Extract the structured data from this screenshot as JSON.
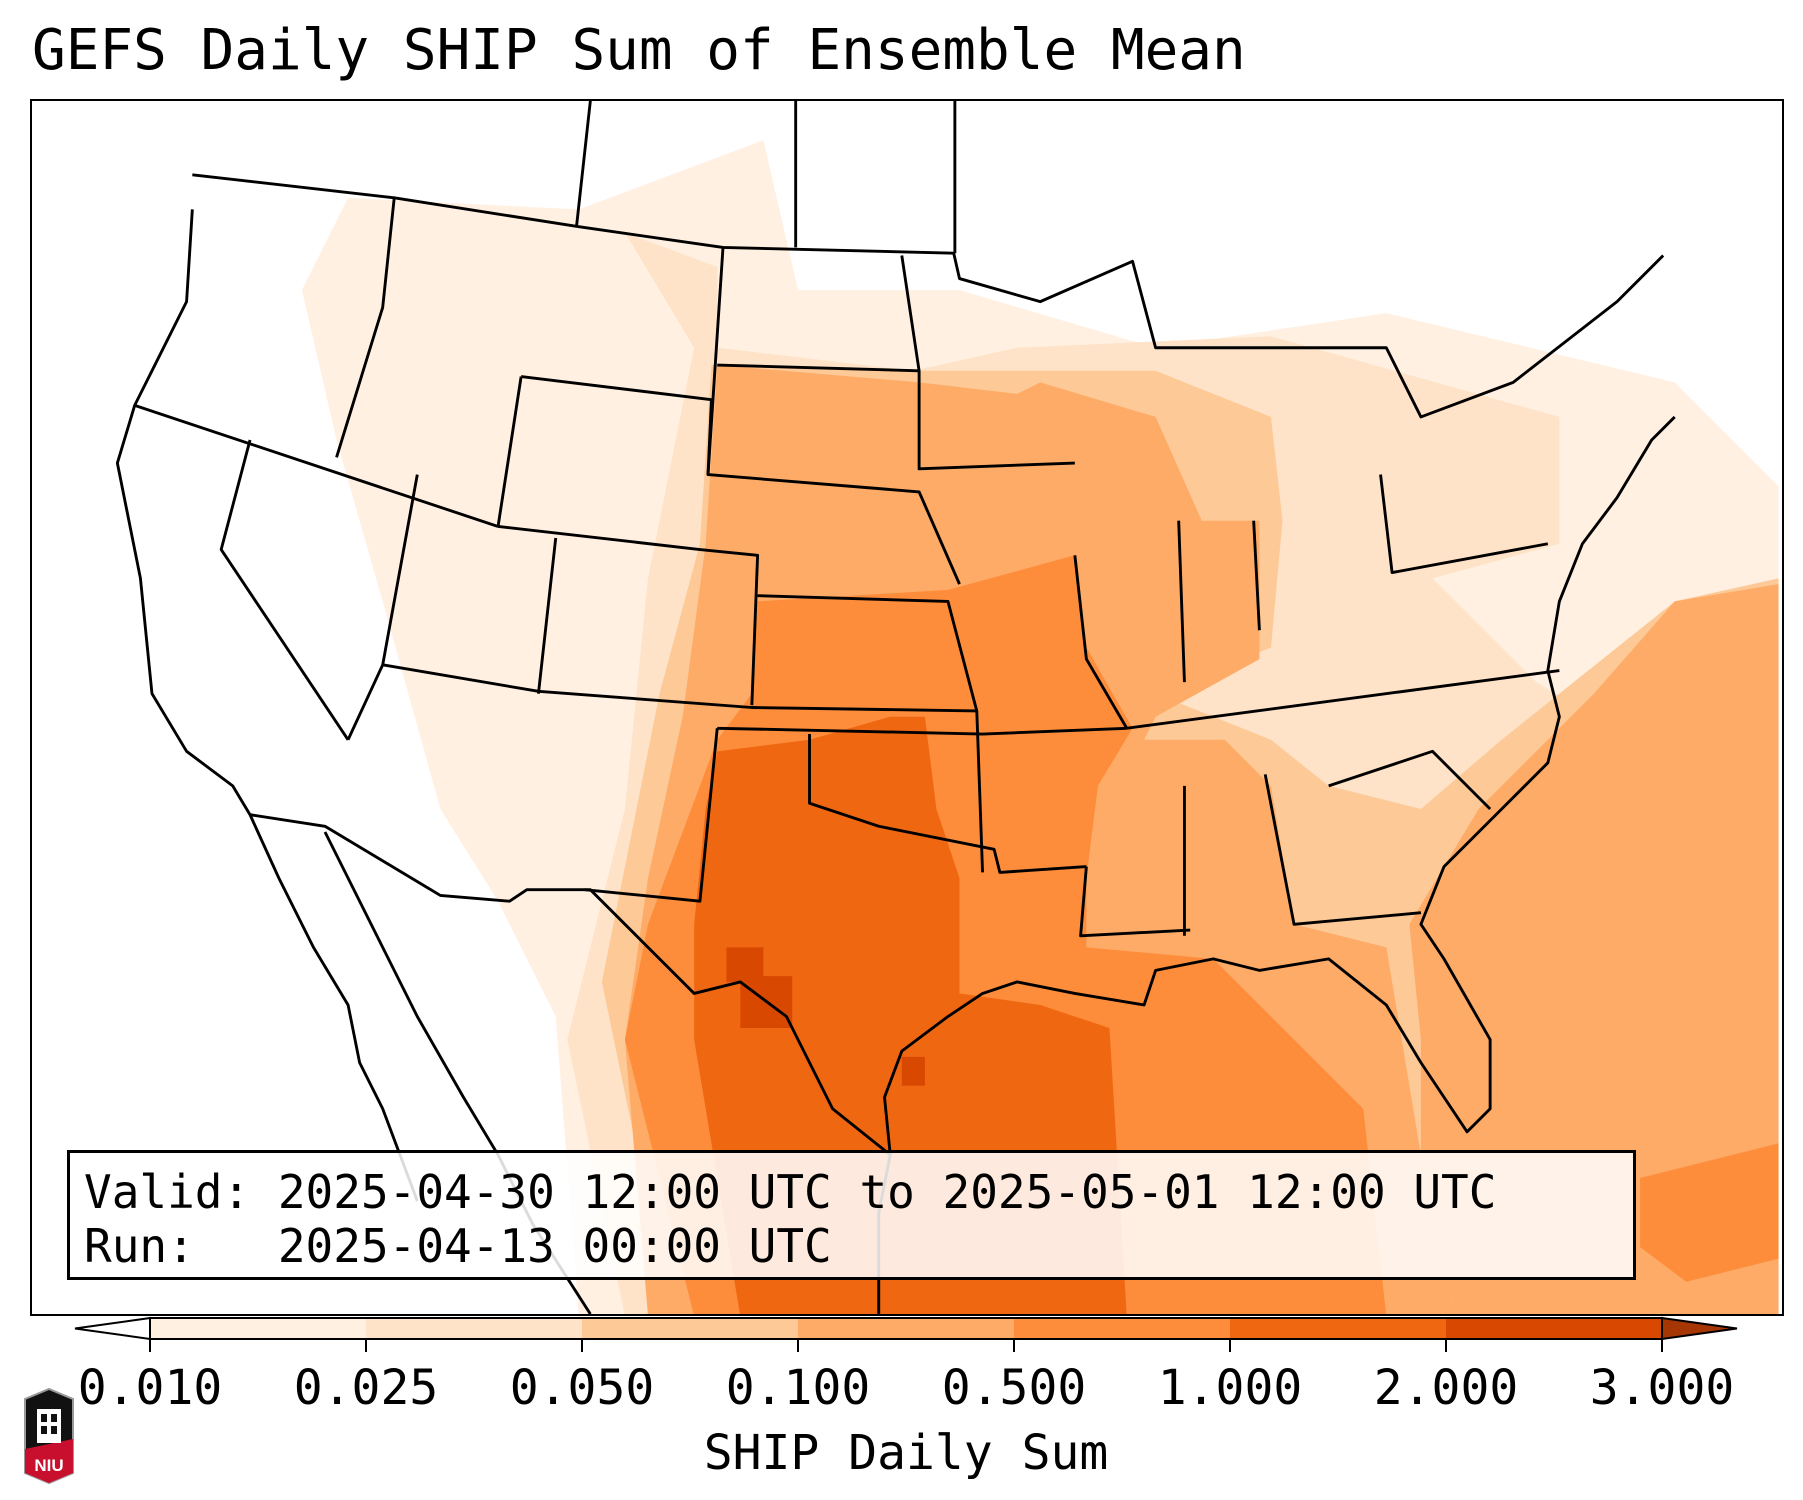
{
  "title": "GEFS Daily SHIP Sum of Ensemble Mean",
  "info": {
    "valid_line": "Valid: 2025-04-30 12:00 UTC to 2025-05-01 12:00 UTC",
    "run_line": "Run:   2025-04-13 00:00 UTC"
  },
  "colorbar": {
    "label": "SHIP Daily Sum",
    "ticks": [
      "0.010",
      "0.025",
      "0.050",
      "0.100",
      "0.500",
      "1.000",
      "2.000",
      "3.000"
    ],
    "under_color": "#ffffff",
    "over_color": "#a63603",
    "colors": [
      "#fff0e2",
      "#fee3c8",
      "#fdc997",
      "#fdab67",
      "#fd8c3b",
      "#f06712",
      "#d84801"
    ]
  },
  "chart_data": {
    "type": "heatmap",
    "title": "GEFS Daily SHIP Sum of Ensemble Mean",
    "variable": "SHIP Daily Sum",
    "levels": [
      0.01,
      0.025,
      0.05,
      0.1,
      0.5,
      1.0,
      2.0,
      3.0
    ],
    "extend": "both",
    "region": "Continental United States",
    "max_area": "West/Central Texas and western Gulf of Mexico (2.0-3.0)"
  },
  "logo": {
    "text": "NIU"
  }
}
